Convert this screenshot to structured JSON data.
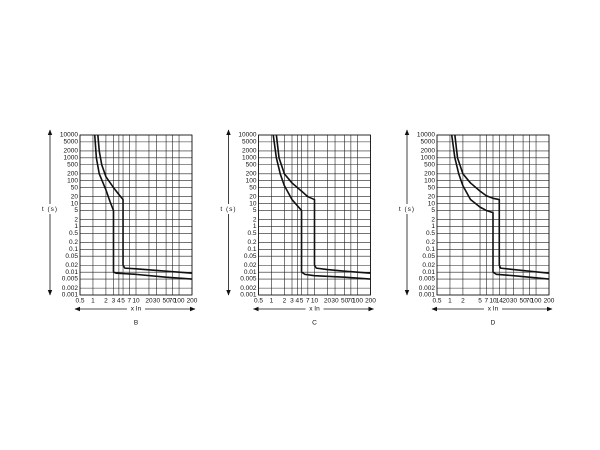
{
  "chart_data": [
    {
      "type": "line",
      "title": "B",
      "xlabel": "x In",
      "ylabel": "t (s)",
      "xscale": "log",
      "yscale": "log",
      "grid": true,
      "xlim": [
        0.5,
        200
      ],
      "xticks": [
        0.5,
        1,
        2,
        3,
        4,
        5,
        7,
        10,
        20,
        30,
        50,
        70,
        100,
        200
      ],
      "ylim": [
        0.001,
        10000
      ],
      "yticks": [
        0.001,
        0.002,
        0.005,
        0.01,
        0.02,
        0.05,
        0.1,
        0.2,
        0.5,
        1,
        2,
        5,
        10,
        20,
        50,
        100,
        200,
        500,
        1000,
        2000,
        5000,
        10000
      ],
      "series": [
        {
          "color": "#111111",
          "x": [
            1.3,
            1.4,
            1.6,
            2,
            3,
            4,
            5,
            5,
            5.5,
            10,
            50,
            200
          ],
          "values": [
            10000,
            2000,
            500,
            150,
            50,
            25,
            15,
            0.02,
            0.015,
            0.014,
            0.011,
            0.009
          ]
        },
        {
          "color": "#111111",
          "x": [
            1.1,
            1.2,
            1.4,
            2,
            2.5,
            3,
            3,
            3.5,
            10,
            50,
            200
          ],
          "values": [
            10000,
            1000,
            200,
            40,
            12,
            5,
            0.01,
            0.009,
            0.008,
            0.006,
            0.005
          ]
        }
      ]
    },
    {
      "type": "line",
      "title": "C",
      "xlabel": "x In",
      "ylabel": "t (s)",
      "xscale": "log",
      "yscale": "log",
      "grid": true,
      "xlim": [
        0.5,
        200
      ],
      "xticks": [
        0.5,
        1,
        2,
        3,
        4,
        5,
        7,
        10,
        20,
        30,
        50,
        70,
        100,
        200
      ],
      "ylim": [
        0.001,
        10000
      ],
      "yticks": [
        0.001,
        0.002,
        0.005,
        0.01,
        0.02,
        0.05,
        0.1,
        0.2,
        0.5,
        1,
        2,
        5,
        10,
        20,
        50,
        100,
        200,
        500,
        1000,
        2000,
        5000,
        10000
      ],
      "series": [
        {
          "color": "#111111",
          "x": [
            1.3,
            1.5,
            2,
            3,
            5,
            7,
            10,
            10,
            11,
            20,
            50,
            200
          ],
          "values": [
            10000,
            1000,
            200,
            80,
            35,
            20,
            15,
            0.02,
            0.015,
            0.013,
            0.011,
            0.009
          ]
        },
        {
          "color": "#111111",
          "x": [
            1.1,
            1.3,
            1.6,
            2,
            3,
            4,
            5,
            5,
            6,
            10,
            50,
            200
          ],
          "values": [
            10000,
            1000,
            200,
            60,
            15,
            8,
            5,
            0.01,
            0.008,
            0.007,
            0.006,
            0.005
          ]
        }
      ]
    },
    {
      "type": "line",
      "title": "D",
      "xlabel": "x In",
      "ylabel": "t (s)",
      "xscale": "log",
      "yscale": "log",
      "grid": true,
      "xlim": [
        0.5,
        200
      ],
      "xticks": [
        0.5,
        1,
        2,
        5,
        7,
        10,
        14,
        20,
        30,
        50,
        70,
        100,
        200
      ],
      "ylim": [
        0.001,
        10000
      ],
      "yticks": [
        0.001,
        0.002,
        0.005,
        0.01,
        0.02,
        0.05,
        0.1,
        0.2,
        0.5,
        1,
        2,
        5,
        10,
        20,
        50,
        100,
        200,
        500,
        1000,
        2000,
        5000,
        10000
      ],
      "series": [
        {
          "color": "#111111",
          "x": [
            1.3,
            1.5,
            2,
            3,
            5,
            7,
            10,
            14,
            14,
            15,
            30,
            200
          ],
          "values": [
            10000,
            1000,
            200,
            80,
            35,
            22,
            17,
            15,
            0.02,
            0.015,
            0.013,
            0.009
          ]
        },
        {
          "color": "#111111",
          "x": [
            1.1,
            1.3,
            1.6,
            2,
            3,
            5,
            7,
            10,
            10,
            12,
            30,
            200
          ],
          "values": [
            10000,
            1000,
            200,
            60,
            15,
            7,
            5,
            4,
            0.01,
            0.008,
            0.007,
            0.005
          ]
        }
      ]
    }
  ]
}
